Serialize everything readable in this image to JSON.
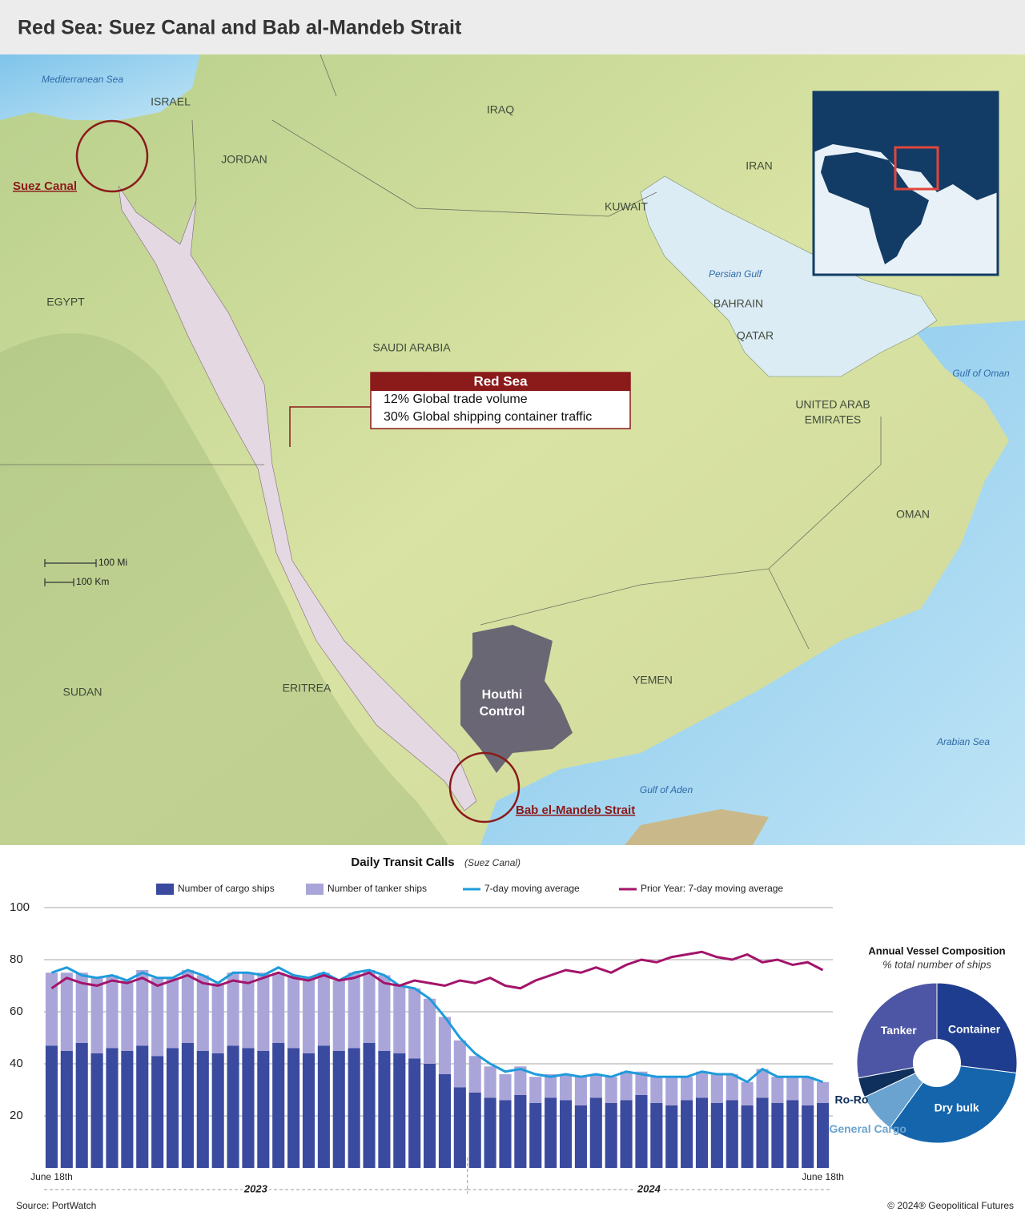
{
  "header": {
    "title": "Red Sea: Suez Canal and Bab al-Mandeb Strait"
  },
  "map": {
    "countries": [
      "ISRAEL",
      "JORDAN",
      "IRAQ",
      "IRAN",
      "KUWAIT",
      "BAHRAIN",
      "QATAR",
      "EGYPT",
      "SAUDI ARABIA",
      "UNITED ARAB",
      "EMIRATES",
      "OMAN",
      "YEMEN",
      "SUDAN",
      "ERITREA"
    ],
    "seas": [
      "Mediterranean Sea",
      "Persian Gulf",
      "Gulf of Oman",
      "Arabian Sea",
      "Gulf of Aden"
    ],
    "callouts": [
      "Suez Canal",
      "Bab el-Mandeb Strait"
    ],
    "houthi": [
      "Houthi",
      "Control"
    ],
    "red_sea_box": {
      "title": "Red Sea",
      "lines": [
        "12% Global trade volume",
        "30% Global shipping container traffic"
      ]
    },
    "scale": [
      "100 Mi",
      "100 Km"
    ]
  },
  "chart_data": [
    {
      "type": "bar",
      "title": "Daily Transit Calls",
      "subtitle": "(Suez Canal)",
      "stacked": true,
      "grid": true,
      "categories": [
        "June 18th",
        null,
        null,
        null,
        null,
        null,
        null,
        null,
        null,
        null,
        null,
        null,
        null,
        null,
        null,
        null,
        null,
        null,
        null,
        null,
        null,
        null,
        null,
        null,
        null,
        null,
        null,
        null,
        null,
        null,
        null,
        null,
        null,
        null,
        null,
        null,
        null,
        null,
        null,
        null,
        null,
        null,
        null,
        null,
        null,
        null,
        null,
        null,
        null,
        null,
        null,
        "June 18th"
      ],
      "x_groups": [
        {
          "label": "2023",
          "start": 0
        },
        {
          "label": "2024",
          "start": 28
        }
      ],
      "ylim": [
        0,
        100
      ],
      "yticks": [
        20,
        40,
        60,
        80,
        100
      ],
      "series": [
        {
          "name": "Number of cargo ships",
          "type": "bar",
          "color": "#3a4a9e",
          "values": [
            47,
            45,
            48,
            44,
            46,
            45,
            47,
            43,
            46,
            48,
            45,
            44,
            47,
            46,
            45,
            48,
            46,
            44,
            47,
            45,
            46,
            48,
            45,
            44,
            42,
            40,
            36,
            31,
            29,
            27,
            26,
            28,
            25,
            27,
            26,
            24,
            27,
            25,
            26,
            28,
            25,
            24,
            26,
            27,
            25,
            26,
            24,
            27,
            25,
            26,
            24,
            25
          ]
        },
        {
          "name": "Number of tanker ships",
          "type": "bar",
          "color": "#aaa5d9",
          "values": [
            28,
            30,
            27,
            29,
            28,
            27,
            29,
            30,
            27,
            28,
            29,
            27,
            28,
            29,
            30,
            27,
            28,
            29,
            28,
            27,
            29,
            28,
            29,
            26,
            27,
            25,
            22,
            18,
            14,
            12,
            10,
            11,
            10,
            9,
            10,
            11,
            9,
            10,
            11,
            9,
            10,
            11,
            9,
            10,
            11,
            10,
            9,
            11,
            10,
            9,
            11,
            8
          ]
        },
        {
          "name": "7-day moving average",
          "type": "line",
          "color": "#1e9bdc",
          "values": [
            75,
            77,
            74,
            73,
            74,
            72,
            75,
            73,
            73,
            76,
            74,
            71,
            75,
            75,
            74,
            77,
            74,
            73,
            75,
            72,
            75,
            76,
            74,
            70,
            69,
            65,
            58,
            50,
            44,
            40,
            37,
            38,
            36,
            35,
            36,
            35,
            36,
            35,
            37,
            36,
            35,
            35,
            35,
            37,
            36,
            36,
            33,
            38,
            35,
            35,
            35,
            33
          ]
        },
        {
          "name": "Prior Year: 7-day moving average",
          "type": "line",
          "color": "#a3146a",
          "values": [
            69,
            73,
            71,
            70,
            72,
            71,
            73,
            70,
            72,
            74,
            71,
            70,
            72,
            71,
            73,
            75,
            73,
            72,
            74,
            72,
            73,
            75,
            71,
            70,
            72,
            71,
            70,
            72,
            71,
            73,
            70,
            69,
            72,
            74,
            76,
            75,
            77,
            75,
            78,
            80,
            79,
            81,
            82,
            83,
            81,
            80,
            82,
            79,
            80,
            78,
            79,
            76
          ]
        }
      ]
    },
    {
      "type": "pie",
      "title": "Annual Vessel Composition",
      "subtitle": "% total number of ships",
      "donut": true,
      "categories": [
        "Container",
        "Dry bulk",
        "General Cargo",
        "Ro-Ro",
        "Tanker"
      ],
      "values": [
        27,
        33,
        8,
        4,
        28
      ],
      "colors": [
        "#1f3d8f",
        "#1565ad",
        "#6aa3cf",
        "#0f2f5c",
        "#4c56a4"
      ]
    }
  ],
  "footer": {
    "source": "Source: PortWatch",
    "credit": "© 2024® Geopolitical Futures"
  }
}
